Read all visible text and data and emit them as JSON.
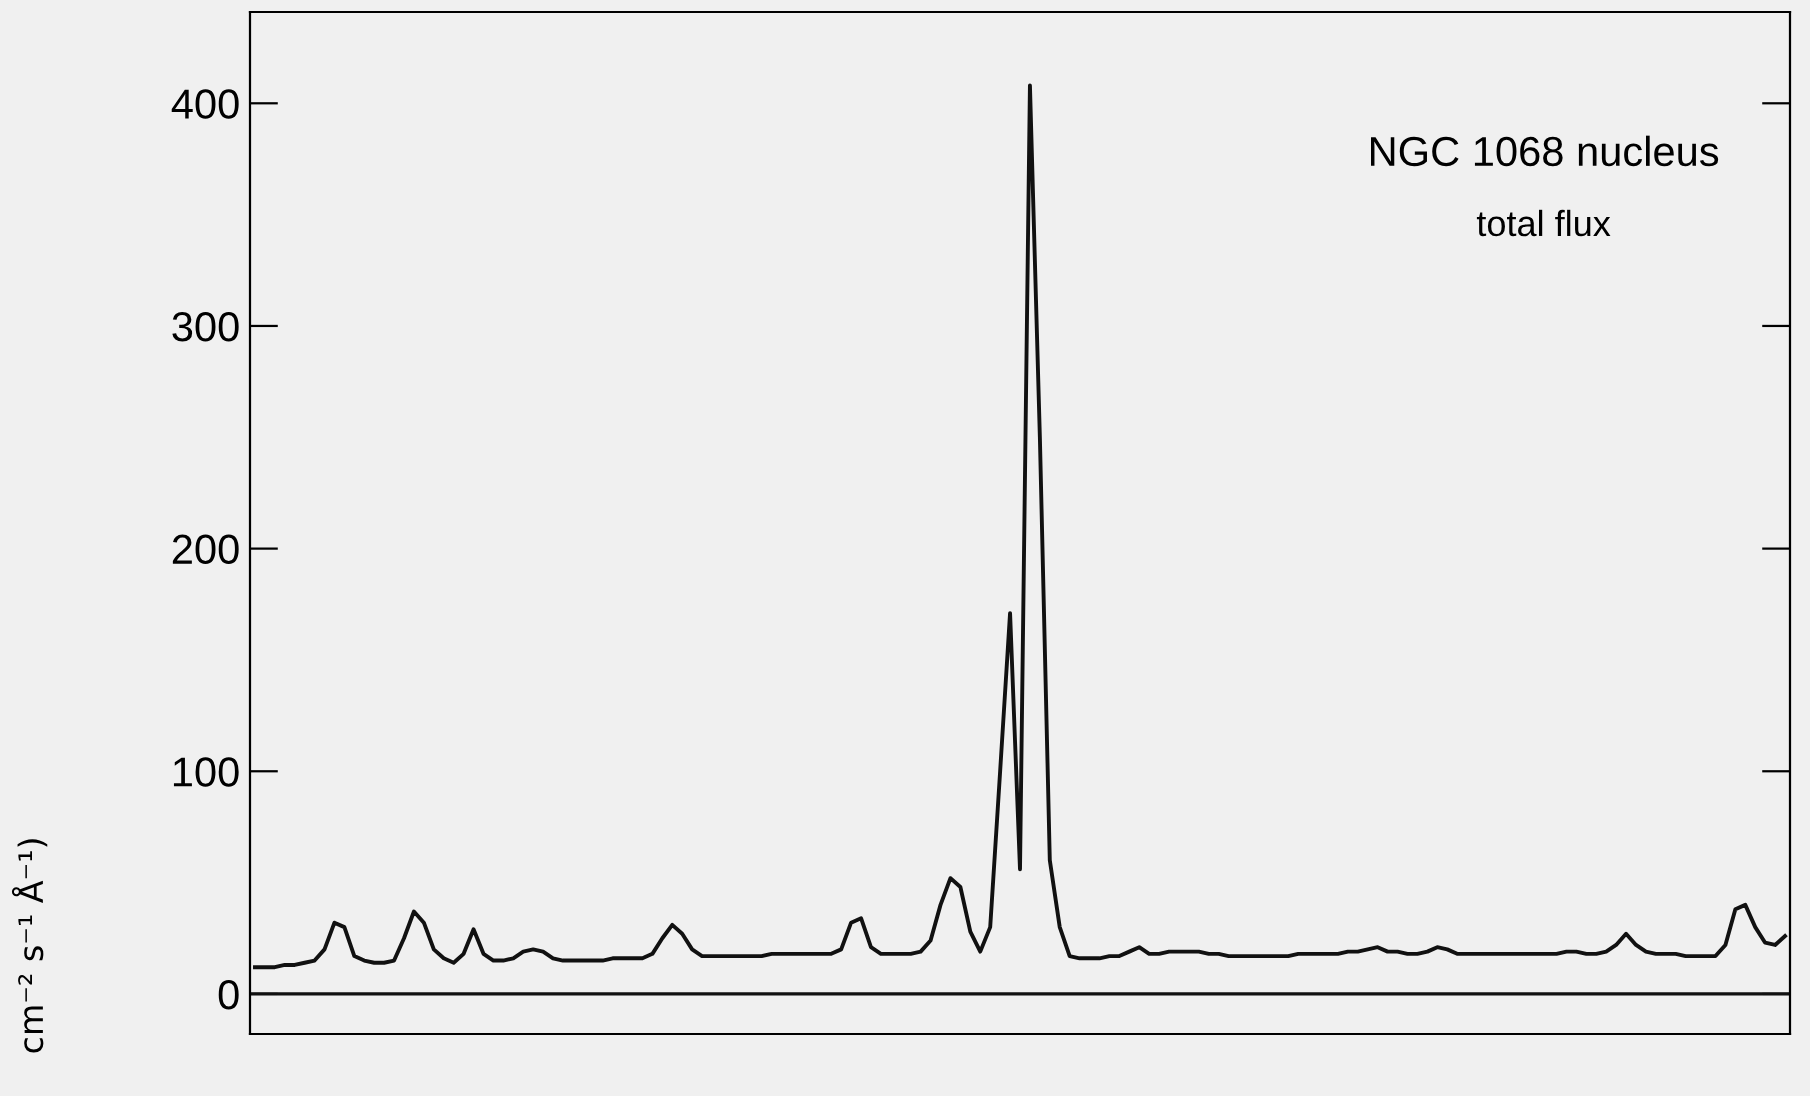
{
  "chart_data": {
    "type": "line",
    "ylabel": "cm⁻² s⁻¹ Å⁻¹)",
    "annotations": [
      "NGC 1068 nucleus",
      "total flux"
    ],
    "categories": [
      null,
      null,
      null,
      null,
      null,
      null,
      null,
      null,
      null,
      null,
      null,
      null,
      null,
      null,
      null,
      null,
      null,
      null,
      null,
      null,
      null,
      null,
      null,
      null,
      null,
      null,
      null,
      null,
      null,
      null,
      null,
      null,
      null,
      null,
      null,
      null,
      null,
      null,
      null,
      null,
      null,
      null,
      null,
      null,
      null,
      null,
      null,
      null,
      null,
      null,
      null,
      null,
      null,
      null,
      null,
      null,
      null,
      null,
      null,
      null,
      null,
      null,
      null,
      null,
      null,
      null,
      null,
      null,
      null,
      null,
      null,
      null,
      null,
      null,
      null,
      null,
      null,
      null,
      null,
      null,
      null,
      null,
      null,
      null,
      null,
      null,
      null,
      null,
      null,
      null,
      null,
      null,
      null,
      null,
      null,
      null,
      null,
      null,
      null,
      null,
      null,
      null,
      null,
      null,
      null,
      null,
      null,
      null,
      null,
      null,
      null,
      null,
      null,
      null,
      null,
      null,
      null,
      null,
      null,
      null,
      null,
      null,
      null,
      null,
      null,
      null,
      null,
      null,
      null,
      null,
      null,
      null,
      null,
      null,
      null,
      null,
      null,
      null,
      null,
      null,
      null,
      null,
      null,
      null,
      null,
      null,
      null,
      null,
      null,
      null,
      null,
      null,
      null,
      null,
      null
    ],
    "series": [
      {
        "color": "#111111",
        "values": [
          12,
          12,
          12,
          13,
          13,
          14,
          15,
          20,
          32,
          30,
          17,
          15,
          14,
          14,
          15,
          25,
          37,
          32,
          20,
          16,
          14,
          18,
          29,
          18,
          15,
          15,
          16,
          19,
          20,
          19,
          16,
          15,
          15,
          15,
          15,
          15,
          16,
          16,
          16,
          16,
          18,
          25,
          31,
          27,
          20,
          17,
          17,
          17,
          17,
          17,
          17,
          17,
          18,
          18,
          18,
          18,
          18,
          18,
          18,
          20,
          32,
          34,
          21,
          18,
          18,
          18,
          18,
          19,
          24,
          40,
          52,
          48,
          28,
          19,
          30,
          100,
          171,
          56,
          408,
          250,
          60,
          30,
          17,
          16,
          16,
          16,
          17,
          17,
          19,
          21,
          18,
          18,
          19,
          19,
          19,
          19,
          18,
          18,
          17,
          17,
          17,
          17,
          17,
          17,
          17,
          18,
          18,
          18,
          18,
          18,
          19,
          19,
          20,
          21,
          19,
          19,
          18,
          18,
          19,
          21,
          20,
          18,
          18,
          18,
          18,
          18,
          18,
          18,
          18,
          18,
          18,
          18,
          19,
          19,
          18,
          18,
          19,
          22,
          27,
          22,
          19,
          18,
          18,
          18,
          17,
          17,
          17,
          17,
          22,
          38,
          40,
          30,
          23,
          22,
          26
        ]
      }
    ],
    "ylim": [
      -18,
      441
    ],
    "yticks": [
      0,
      100,
      200,
      300,
      400
    ],
    "ref_lines": [
      {
        "axis": "y",
        "value": 0,
        "color": "#111111"
      }
    ],
    "grid": false,
    "legend": false
  }
}
